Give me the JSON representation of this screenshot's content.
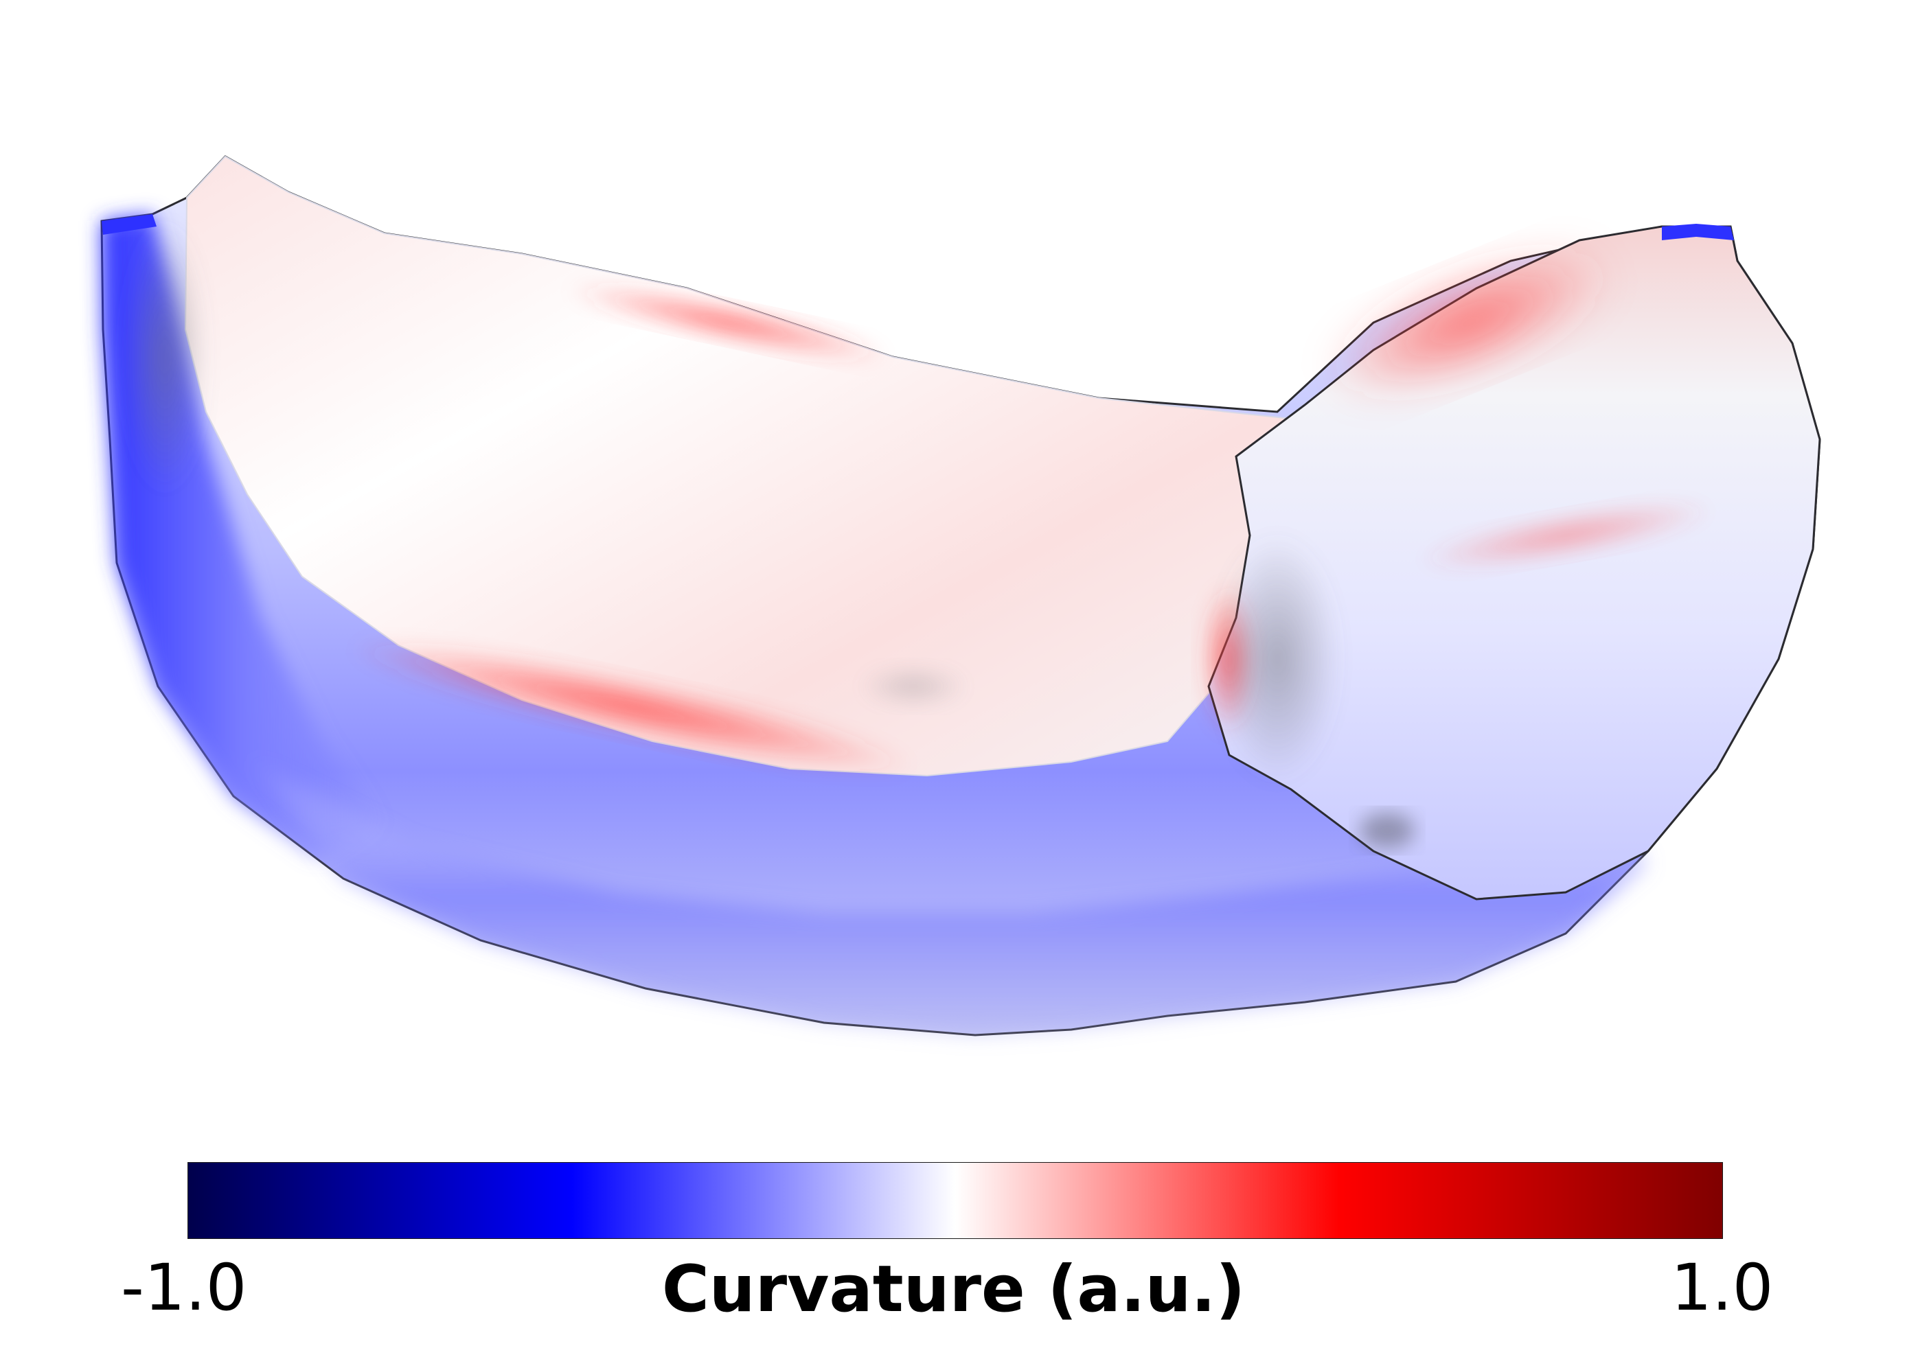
{
  "colorbar": {
    "min_label": "-1.0",
    "max_label": "1.0",
    "label": "Curvature (a.u.)",
    "colormap": "seismic",
    "range": [
      -1.0,
      1.0
    ],
    "colors": {
      "min": "#00004c",
      "low": "#0000ff",
      "mid": "#ffffff",
      "high": "#ff0000",
      "max": "#800000"
    }
  }
}
